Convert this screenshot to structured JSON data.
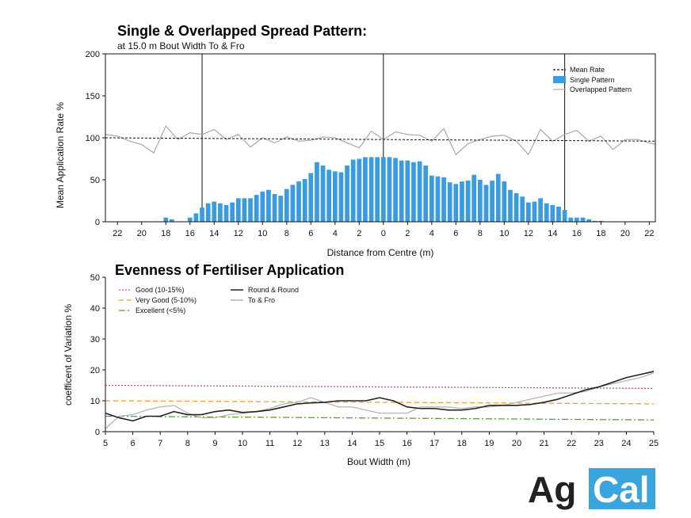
{
  "chart_data": [
    {
      "type": "bar",
      "title": "Single & Overlapped Spread Pattern:",
      "subtitle": "at 15.0 m Bout Width To & Fro",
      "xlabel": "Distance from Centre (m)",
      "ylabel": "Mean Application Rate %",
      "xlim": [
        -23,
        22.5
      ],
      "ylim": [
        0,
        200
      ],
      "yticks": [
        0,
        50,
        100,
        150,
        200
      ],
      "xtick_labels": [
        "22",
        "20",
        "18",
        "16",
        "14",
        "12",
        "10",
        "8",
        "6",
        "4",
        "2",
        "0",
        "2",
        "4",
        "6",
        "8",
        "10",
        "12",
        "14",
        "16",
        "18",
        "20",
        "22"
      ],
      "xtick_positions": [
        -22,
        -20,
        -18,
        -16,
        -14,
        -12,
        -10,
        -8,
        -6,
        -4,
        -2,
        0,
        2,
        4,
        6,
        8,
        10,
        12,
        14,
        16,
        18,
        20,
        22
      ],
      "bout_markers": [
        -15,
        0,
        15
      ],
      "legend": [
        "Mean Rate",
        "Single Pattern",
        "Overlapped Pattern"
      ],
      "legend_position": "top-right",
      "colors": {
        "bars": "#3a9be0",
        "overlapped": "#a8a8a8",
        "mean": "#111111"
      },
      "mean_rate": [
        {
          "x": -23,
          "y": 100
        },
        {
          "x": 22.5,
          "y": 96
        }
      ],
      "single_pattern": {
        "x": [
          -18,
          -17.5,
          -17,
          -16.5,
          -16,
          -15.5,
          -15,
          -14.5,
          -14,
          -13.5,
          -13,
          -12.5,
          -12,
          -11.5,
          -11,
          -10.5,
          -10,
          -9.5,
          -9,
          -8.5,
          -8,
          -7.5,
          -7,
          -6.5,
          -6,
          -5.5,
          -5,
          -4.5,
          -4,
          -3.5,
          -3,
          -2.5,
          -2,
          -1.5,
          -1,
          -0.5,
          0,
          0.5,
          1,
          1.5,
          2,
          2.5,
          3,
          3.5,
          4,
          4.5,
          5,
          5.5,
          6,
          6.5,
          7,
          7.5,
          8,
          8.5,
          9,
          9.5,
          10,
          10.5,
          11,
          11.5,
          12,
          12.5,
          13,
          13.5,
          14,
          14.5,
          15,
          15.5,
          16,
          16.5,
          17,
          17.5,
          18,
          18.5
        ],
        "values": [
          5,
          3,
          0,
          0,
          5,
          10,
          17,
          22,
          24,
          22,
          20,
          23,
          28,
          28,
          28,
          32,
          36,
          38,
          33,
          31,
          39,
          44,
          48,
          51,
          58,
          71,
          67,
          62,
          60,
          59,
          67,
          74,
          75,
          77,
          77,
          77,
          77,
          77,
          76,
          73,
          73,
          71,
          72,
          67,
          55,
          54,
          53,
          47,
          45,
          48,
          49,
          56,
          50,
          44,
          49,
          57,
          48,
          38,
          34,
          30,
          23,
          24,
          28,
          22,
          20,
          18,
          14,
          5,
          5,
          5,
          3,
          1,
          1,
          0
        ]
      },
      "overlapped_pattern": {
        "x": [
          -23,
          -22,
          -21,
          -20,
          -19,
          -18,
          -17,
          -16,
          -15,
          -14,
          -13,
          -12,
          -11,
          -10,
          -9,
          -8,
          -7,
          -6,
          -5,
          -4,
          -3,
          -2,
          -1,
          0,
          1,
          2,
          3,
          4,
          5,
          6,
          7,
          8,
          9,
          10,
          11,
          12,
          13,
          14,
          15,
          16,
          17,
          18,
          19,
          20,
          21,
          22,
          22.5
        ],
        "values": [
          104,
          102,
          96,
          92,
          82,
          114,
          98,
          106,
          104,
          110,
          98,
          104,
          89,
          100,
          94,
          101,
          96,
          97,
          101,
          100,
          94,
          88,
          108,
          98,
          107,
          104,
          103,
          96,
          111,
          80,
          93,
          98,
          102,
          103,
          96,
          80,
          110,
          96,
          104,
          109,
          96,
          102,
          86,
          98,
          98,
          94,
          92
        ]
      }
    },
    {
      "type": "line",
      "title": "Evenness of Fertiliser Application",
      "xlabel": "Bout Width (m)",
      "ylabel": "coefficent of Variation %",
      "xlim": [
        5,
        25
      ],
      "ylim": [
        0,
        50
      ],
      "xticks": [
        5,
        6,
        7,
        8,
        9,
        10,
        11,
        12,
        13,
        14,
        15,
        16,
        17,
        18,
        19,
        20,
        21,
        22,
        23,
        24,
        25
      ],
      "yticks": [
        0,
        10,
        20,
        30,
        40,
        50
      ],
      "legend_position": "top-left",
      "thresholds": [
        {
          "name": "Good (10-15%)",
          "color": "#d94a7b",
          "dash": "2,2",
          "values": [
            [
              5,
              15.0
            ],
            [
              25,
              14.0
            ]
          ]
        },
        {
          "name": "Very Good (5-10%)",
          "color": "#f0a020",
          "dash": "6,4",
          "values": [
            [
              5,
              10.0
            ],
            [
              25,
              9.0
            ]
          ]
        },
        {
          "name": "Excellent (<5%)",
          "color": "#5aa02c",
          "dash": "8,3,2,3",
          "values": [
            [
              5,
              5.0
            ],
            [
              25,
              3.8
            ]
          ]
        }
      ],
      "series": [
        {
          "name": "Round & Round",
          "color": "#222222",
          "x": [
            5,
            5.5,
            6,
            6.5,
            7,
            7.5,
            8,
            8.5,
            9,
            9.5,
            10,
            10.5,
            11,
            11.5,
            12,
            12.5,
            13,
            13.5,
            14,
            14.5,
            15,
            15.5,
            16,
            16.5,
            17,
            17.5,
            18,
            18.5,
            19,
            19.5,
            20,
            20.5,
            21,
            21.5,
            22,
            22.5,
            23,
            23.5,
            24,
            24.5,
            25
          ],
          "values": [
            6,
            4.5,
            3.5,
            5,
            5,
            6.5,
            5.5,
            5.5,
            6.5,
            7,
            6.2,
            6.5,
            7,
            8,
            9,
            9.3,
            9.5,
            10,
            10,
            10,
            11,
            10,
            8,
            7.5,
            7.5,
            7,
            7,
            7.5,
            8.5,
            8.5,
            8.5,
            8.8,
            9.5,
            10.5,
            12,
            13.5,
            14.5,
            16,
            17.5,
            18.5,
            19.5
          ]
        },
        {
          "name": "To & Fro",
          "color": "#b5b5b5",
          "x": [
            5,
            5.5,
            6,
            6.5,
            7,
            7.5,
            8,
            8.5,
            9,
            9.5,
            10,
            10.5,
            11,
            11.5,
            12,
            12.5,
            13,
            13.5,
            14,
            14.5,
            15,
            15.5,
            16,
            16.5,
            17,
            17.5,
            18,
            18.5,
            19,
            19.5,
            20,
            20.5,
            21,
            21.5,
            22,
            22.5,
            23,
            23.5,
            24,
            24.5,
            25
          ],
          "values": [
            1,
            5,
            5.5,
            7,
            8,
            8.5,
            6,
            4.5,
            4.5,
            5.5,
            6,
            6.5,
            7.5,
            9,
            9.5,
            11,
            9.5,
            8,
            8,
            7,
            6,
            6,
            6,
            8,
            8,
            8,
            7.5,
            8,
            8,
            8.5,
            9.5,
            10.5,
            11.5,
            12.5,
            12.5,
            13,
            14.5,
            15.5,
            16.5,
            17.5,
            19
          ]
        }
      ]
    }
  ],
  "logo": {
    "part1": "Ag",
    "part2": "Cal"
  }
}
